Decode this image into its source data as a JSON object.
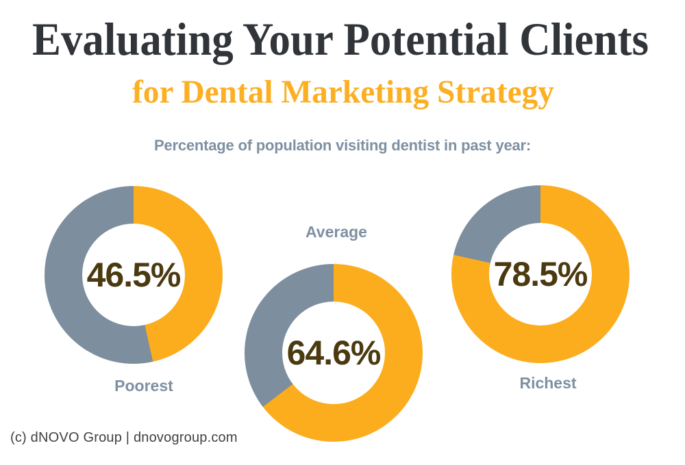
{
  "header": {
    "title": "Evaluating Your Potential Clients",
    "subtitle": "for Dental Marketing Strategy",
    "subheading": "Percentage of population visiting dentist in past year:"
  },
  "colors": {
    "title_charcoal": "#31353A",
    "accent_orange": "#FBAD1D",
    "slate_gray": "#7D8E9E",
    "value_brown": "#4B3A10",
    "label_gray": "#7E90A2"
  },
  "chart_data": {
    "type": "pie",
    "subtype": "donut",
    "title": "Percentage of population visiting dentist in past year",
    "unit": "%",
    "colors": {
      "filled": "#FBAD1D",
      "remainder": "#7D8E9E"
    },
    "layout": {
      "start_angle": "top",
      "direction": "clockwise",
      "hole_ratio": 0.57
    },
    "charts": [
      {
        "label": "Poorest",
        "value": 46.5,
        "value_label": "46.5%"
      },
      {
        "label": "Average",
        "value": 64.6,
        "value_label": "64.6%"
      },
      {
        "label": "Richest",
        "value": 78.5,
        "value_label": "78.5%"
      }
    ]
  },
  "footer": {
    "credit": "(c) dNOVO Group | dnovogroup.com"
  }
}
